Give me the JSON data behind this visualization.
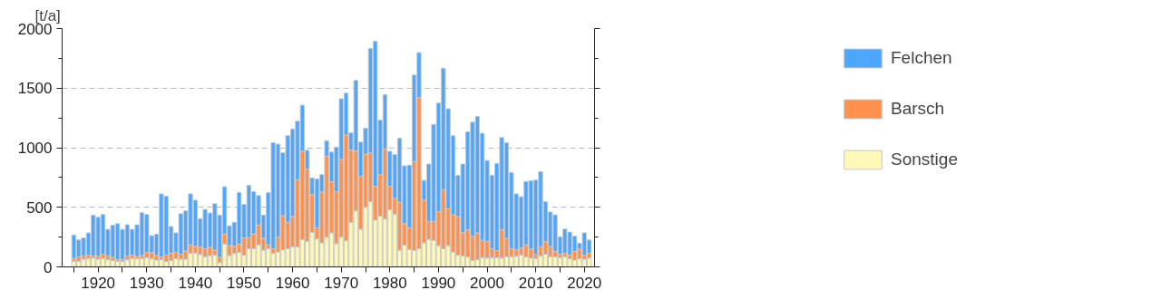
{
  "chart_data": {
    "type": "bar",
    "stacked": true,
    "ylabel": "[t/a]",
    "x": [
      1915,
      1916,
      1917,
      1918,
      1919,
      1920,
      1921,
      1922,
      1923,
      1924,
      1925,
      1926,
      1927,
      1928,
      1929,
      1930,
      1931,
      1932,
      1933,
      1934,
      1935,
      1936,
      1937,
      1938,
      1939,
      1940,
      1941,
      1942,
      1943,
      1944,
      1945,
      1946,
      1947,
      1948,
      1949,
      1950,
      1951,
      1952,
      1953,
      1954,
      1955,
      1956,
      1957,
      1958,
      1959,
      1960,
      1961,
      1962,
      1963,
      1964,
      1965,
      1966,
      1967,
      1968,
      1969,
      1970,
      1971,
      1972,
      1973,
      1974,
      1975,
      1976,
      1977,
      1978,
      1979,
      1980,
      1981,
      1982,
      1983,
      1984,
      1985,
      1986,
      1987,
      1988,
      1989,
      1990,
      1991,
      1992,
      1993,
      1994,
      1995,
      1996,
      1997,
      1998,
      1999,
      2000,
      2001,
      2002,
      2003,
      2004,
      2005,
      2006,
      2007,
      2008,
      2009,
      2010,
      2011,
      2012,
      2013,
      2014,
      2015,
      2016,
      2017,
      2018,
      2019,
      2020,
      2021
    ],
    "series": [
      {
        "name": "Sonstige",
        "color": "#fff8b8",
        "values": [
          48,
          48,
          65,
          71,
          74,
          65,
          71,
          60,
          54,
          48,
          45,
          60,
          71,
          68,
          71,
          77,
          68,
          57,
          60,
          45,
          54,
          68,
          65,
          65,
          116,
          116,
          104,
          86,
          95,
          98,
          36,
          193,
          95,
          113,
          122,
          98,
          152,
          152,
          185,
          140,
          152,
          113,
          125,
          143,
          152,
          167,
          167,
          229,
          214,
          289,
          235,
          202,
          250,
          286,
          196,
          250,
          220,
          375,
          470,
          315,
          500,
          548,
          393,
          426,
          402,
          479,
          443,
          140,
          182,
          146,
          137,
          152,
          202,
          232,
          223,
          179,
          152,
          179,
          125,
          98,
          92,
          83,
          54,
          60,
          77,
          74,
          77,
          77,
          74,
          86,
          86,
          89,
          101,
          83,
          74,
          71,
          92,
          107,
          86,
          83,
          77,
          86,
          68,
          57,
          68,
          65,
          74
        ]
      },
      {
        "name": "Barsch",
        "color": "#ff914d",
        "values": [
          23,
          35,
          27,
          27,
          18,
          24,
          36,
          32,
          26,
          14,
          15,
          32,
          27,
          18,
          24,
          45,
          51,
          41,
          23,
          53,
          62,
          54,
          42,
          69,
          69,
          57,
          63,
          66,
          69,
          42,
          44,
          84,
          84,
          60,
          68,
          146,
          92,
          125,
          166,
          101,
          33,
          39,
          125,
          286,
          223,
          256,
          565,
          741,
          607,
          318,
          92,
          426,
          679,
          428,
          435,
          652,
          887,
          607,
          503,
          444,
          446,
          407,
          283,
          348,
          586,
          197,
          131,
          402,
          181,
          181,
          747,
          1268,
          358,
          149,
          158,
          285,
          494,
          309,
          312,
          325,
          194,
          227,
          202,
          226,
          146,
          137,
          75,
          60,
          236,
          152,
          66,
          54,
          57,
          102,
          75,
          36,
          78,
          104,
          84,
          48,
          30,
          27,
          30,
          74,
          81,
          33,
          42
        ]
      },
      {
        "name": "Felchen",
        "color": "#4da6ff",
        "values": [
          197,
          143,
          152,
          188,
          343,
          328,
          333,
          223,
          271,
          301,
          255,
          262,
          217,
          268,
          360,
          318,
          143,
          176,
          530,
          497,
          223,
          164,
          339,
          336,
          428,
          387,
          238,
          330,
          288,
          390,
          355,
          396,
          166,
          202,
          435,
          280,
          440,
          354,
          247,
          194,
          440,
          890,
          780,
          529,
          726,
          735,
          491,
          387,
          158,
          140,
          411,
          146,
          130,
          250,
          375,
          509,
          351,
          143,
          592,
          289,
          218,
          878,
          1217,
          458,
          458,
          294,
          369,
          538,
          485,
          527,
          726,
          378,
          166,
          482,
          815,
          911,
          1021,
          839,
          664,
          345,
          577,
          824,
          958,
          976,
          899,
          682,
          616,
          732,
          776,
          804,
          640,
          470,
          431,
          532,
          574,
          622,
          630,
          337,
          291,
          306,
          146,
          205,
          194,
          128,
          50,
          188,
          110
        ]
      }
    ],
    "xlim": [
      1912.6,
      2022.1
    ],
    "xticks": [
      {
        "value": 1915,
        "label": null
      },
      1920,
      {
        "value": 1925,
        "label": null
      },
      1930,
      {
        "value": 1935,
        "label": null
      },
      1940,
      {
        "value": 1945,
        "label": null
      },
      1950,
      {
        "value": 1955,
        "label": null
      },
      1960,
      {
        "value": 1965,
        "label": null
      },
      1970,
      {
        "value": 1975,
        "label": null
      },
      1980,
      {
        "value": 1985,
        "label": null
      },
      1990,
      {
        "value": 1995,
        "label": null
      },
      2000,
      {
        "value": 2005,
        "label": null
      },
      2010,
      {
        "value": 2015,
        "label": null
      },
      2020
    ],
    "ylim": [
      0,
      2000
    ],
    "yticks": [
      0,
      500,
      1000,
      1500,
      2000
    ],
    "grid": "y",
    "legend": "right"
  }
}
